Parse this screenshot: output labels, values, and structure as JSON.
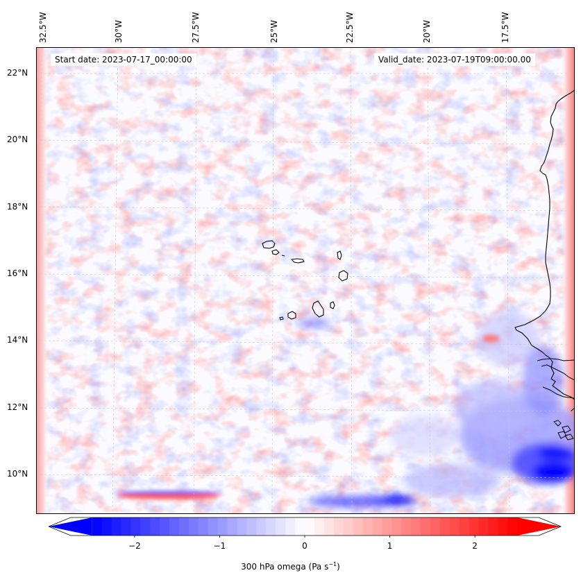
{
  "map": {
    "start_date": "Start date: 2023-07-17_00:00:00",
    "valid_date": "Valid_date: 2023-07-19T09:00:00.00",
    "lon_ticks": [
      "32.5°W",
      "30°W",
      "27.5°W",
      "25°W",
      "22.5°W",
      "20°W",
      "17.5°W"
    ],
    "lat_ticks": [
      "22°N",
      "20°N",
      "18°N",
      "16°N",
      "14°N",
      "12°N",
      "10°N"
    ],
    "colors": {
      "negative": "#0000ff",
      "zero": "#ffffff",
      "positive": "#ff0000",
      "coast": "#000000",
      "grid": "#c8c8c8"
    }
  },
  "colorbar": {
    "ticks": [
      "−2",
      "−1",
      "0",
      "1",
      "2"
    ],
    "tick_values": [
      -2,
      -1,
      0,
      1,
      2
    ],
    "range": [
      -2.75,
      2.75
    ],
    "label": "300 hPa omega (Pa s",
    "label_sup": "−1",
    "label_close": ")"
  }
}
